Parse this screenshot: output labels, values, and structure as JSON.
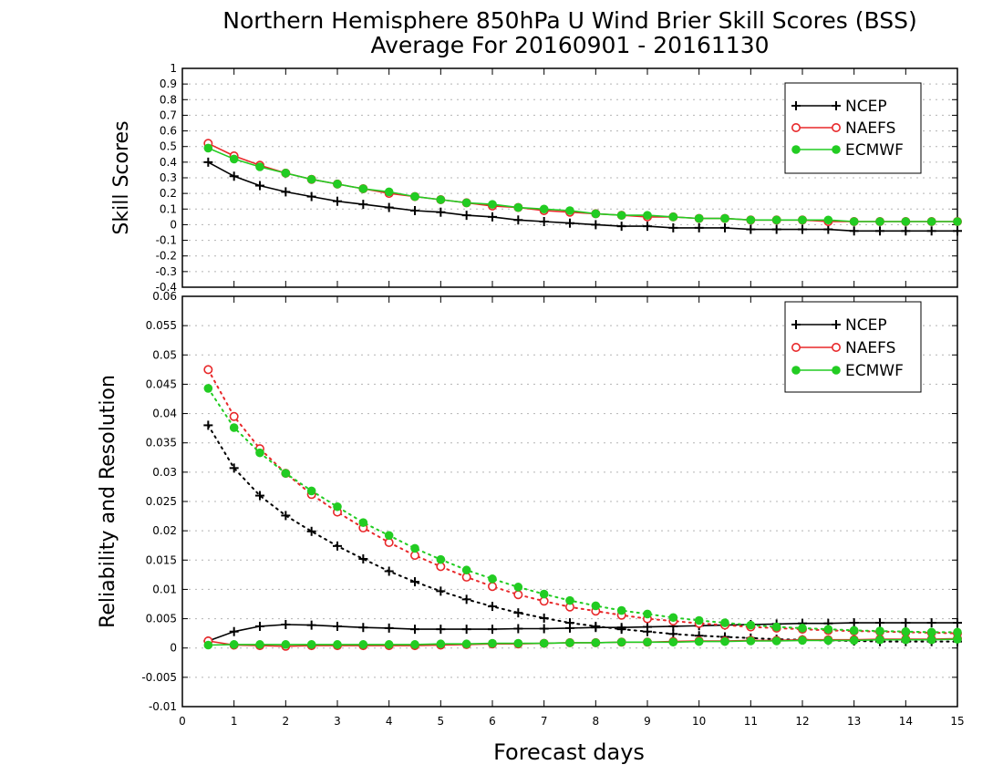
{
  "chart_data": [
    {
      "type": "line",
      "title": "Northern Hemisphere 850hPa U Wind Brier Skill Scores (BSS)",
      "subtitle": "Average For 20160901 - 20161130",
      "ylabel": "Skill Scores",
      "xlabel": "Forecast days",
      "xlim": [
        0,
        15
      ],
      "ylim": [
        -0.4,
        1
      ],
      "xticks": [
        "0",
        "1",
        "2",
        "3",
        "4",
        "5",
        "6",
        "7",
        "8",
        "9",
        "10",
        "11",
        "12",
        "13",
        "14",
        "15"
      ],
      "yticks": [
        "-0.4",
        "-0.3",
        "-0.2",
        "-0.1",
        "0",
        "0.1",
        "0.2",
        "0.3",
        "0.4",
        "0.5",
        "0.6",
        "0.7",
        "0.8",
        "0.9",
        "1"
      ],
      "grid": true,
      "legend_position": "top-right",
      "x": [
        0.5,
        1,
        1.5,
        2,
        2.5,
        3,
        3.5,
        4,
        4.5,
        5,
        5.5,
        6,
        6.5,
        7,
        7.5,
        8,
        8.5,
        9,
        9.5,
        10,
        10.5,
        11,
        11.5,
        12,
        12.5,
        13,
        13.5,
        14,
        14.5,
        15
      ],
      "series": [
        {
          "name": "NCEP",
          "color": "#000000",
          "marker": "plus",
          "values": [
            0.4,
            0.31,
            0.25,
            0.21,
            0.18,
            0.15,
            0.13,
            0.11,
            0.09,
            0.08,
            0.06,
            0.05,
            0.03,
            0.02,
            0.01,
            0.0,
            -0.01,
            -0.01,
            -0.02,
            -0.02,
            -0.02,
            -0.03,
            -0.03,
            -0.03,
            -0.03,
            -0.04,
            -0.04,
            -0.04,
            -0.04,
            -0.04
          ]
        },
        {
          "name": "NAEFS",
          "color": "#e8282a",
          "marker": "circle-open",
          "values": [
            0.52,
            0.44,
            0.38,
            0.33,
            0.29,
            0.26,
            0.23,
            0.2,
            0.18,
            0.16,
            0.14,
            0.12,
            0.11,
            0.09,
            0.08,
            0.07,
            0.06,
            0.05,
            0.05,
            0.04,
            0.04,
            0.03,
            0.03,
            0.03,
            0.02,
            0.02,
            0.02,
            0.02,
            0.02,
            0.02
          ]
        },
        {
          "name": "ECMWF",
          "color": "#22cc22",
          "marker": "circle-filled",
          "values": [
            0.49,
            0.42,
            0.37,
            0.33,
            0.29,
            0.26,
            0.23,
            0.21,
            0.18,
            0.16,
            0.14,
            0.13,
            0.11,
            0.1,
            0.09,
            0.07,
            0.06,
            0.06,
            0.05,
            0.04,
            0.04,
            0.03,
            0.03,
            0.03,
            0.03,
            0.02,
            0.02,
            0.02,
            0.02,
            0.02
          ]
        }
      ]
    },
    {
      "type": "line",
      "ylabel": "Reliability and Resolution",
      "xlabel": "Forecast days",
      "xlim": [
        0,
        15
      ],
      "ylim": [
        -0.01,
        0.06
      ],
      "xticks": [
        "0",
        "1",
        "2",
        "3",
        "4",
        "5",
        "6",
        "7",
        "8",
        "9",
        "10",
        "11",
        "12",
        "13",
        "14",
        "15"
      ],
      "yticks": [
        "-0.01",
        "-0.005",
        "0",
        "0.005",
        "0.01",
        "0.015",
        "0.02",
        "0.025",
        "0.03",
        "0.035",
        "0.04",
        "0.045",
        "0.05",
        "0.055",
        "0.06"
      ],
      "grid": true,
      "legend_position": "top-right",
      "x": [
        0.5,
        1,
        1.5,
        2,
        2.5,
        3,
        3.5,
        4,
        4.5,
        5,
        5.5,
        6,
        6.5,
        7,
        7.5,
        8,
        8.5,
        9,
        9.5,
        10,
        10.5,
        11,
        11.5,
        12,
        12.5,
        13,
        13.5,
        14,
        14.5,
        15
      ],
      "series": [
        {
          "name": "NCEP",
          "color": "#000000",
          "marker": "plus",
          "line": "dotted",
          "values": [
            0.038,
            0.0307,
            0.026,
            0.0226,
            0.0199,
            0.0174,
            0.0152,
            0.0131,
            0.0113,
            0.0097,
            0.0083,
            0.0071,
            0.006,
            0.0051,
            0.0043,
            0.0037,
            0.0032,
            0.0028,
            0.0024,
            0.0021,
            0.0019,
            0.0017,
            0.0015,
            0.0014,
            0.0013,
            0.0012,
            0.0011,
            0.0011,
            0.0011,
            0.0011
          ]
        },
        {
          "name": "NCEP",
          "color": "#000000",
          "marker": "plus",
          "line": "solid",
          "values": [
            0.0012,
            0.0028,
            0.0037,
            0.004,
            0.0039,
            0.0037,
            0.0035,
            0.0034,
            0.0032,
            0.0032,
            0.0032,
            0.0032,
            0.0033,
            0.0033,
            0.0034,
            0.0035,
            0.0035,
            0.0036,
            0.0037,
            0.0038,
            0.0039,
            0.004,
            0.0041,
            0.0042,
            0.0042,
            0.0043,
            0.0043,
            0.0043,
            0.0043,
            0.0043
          ]
        },
        {
          "name": "NAEFS",
          "color": "#e8282a",
          "marker": "circle-open",
          "line": "dotted",
          "values": [
            0.0475,
            0.0395,
            0.034,
            0.0298,
            0.0262,
            0.0232,
            0.0205,
            0.018,
            0.0158,
            0.0139,
            0.0121,
            0.0105,
            0.0091,
            0.008,
            0.007,
            0.0063,
            0.0056,
            0.005,
            0.0046,
            0.0042,
            0.0039,
            0.0036,
            0.0034,
            0.0032,
            0.003,
            0.0029,
            0.0028,
            0.0027,
            0.0026,
            0.0025
          ]
        },
        {
          "name": "NAEFS",
          "color": "#e8282a",
          "marker": "circle-open",
          "line": "solid",
          "values": [
            0.0012,
            0.0005,
            0.0004,
            0.0003,
            0.0004,
            0.0004,
            0.0004,
            0.0004,
            0.0004,
            0.0005,
            0.0006,
            0.0007,
            0.0007,
            0.0008,
            0.0009,
            0.0009,
            0.001,
            0.001,
            0.0011,
            0.0012,
            0.0012,
            0.0013,
            0.0013,
            0.0014,
            0.0014,
            0.0014,
            0.0015,
            0.0015,
            0.0015,
            0.0016
          ]
        },
        {
          "name": "ECMWF",
          "color": "#22cc22",
          "marker": "circle-filled",
          "line": "dotted",
          "values": [
            0.0443,
            0.0376,
            0.0333,
            0.0298,
            0.0268,
            0.0241,
            0.0214,
            0.0192,
            0.017,
            0.0151,
            0.0133,
            0.0118,
            0.0104,
            0.0092,
            0.0081,
            0.0072,
            0.0064,
            0.0058,
            0.0052,
            0.0047,
            0.0043,
            0.0039,
            0.0036,
            0.0034,
            0.0032,
            0.003,
            0.0029,
            0.0028,
            0.0027,
            0.0027
          ]
        },
        {
          "name": "ECMWF",
          "color": "#22cc22",
          "marker": "circle-filled",
          "line": "solid",
          "values": [
            0.0005,
            0.0006,
            0.0006,
            0.0006,
            0.0006,
            0.0006,
            0.0006,
            0.0006,
            0.0006,
            0.0007,
            0.0007,
            0.0008,
            0.0008,
            0.0008,
            0.0009,
            0.0009,
            0.001,
            0.001,
            0.001,
            0.0011,
            0.0011,
            0.0012,
            0.0012,
            0.0013,
            0.0013,
            0.0013,
            0.0014,
            0.0014,
            0.0014,
            0.0015
          ]
        }
      ]
    }
  ]
}
